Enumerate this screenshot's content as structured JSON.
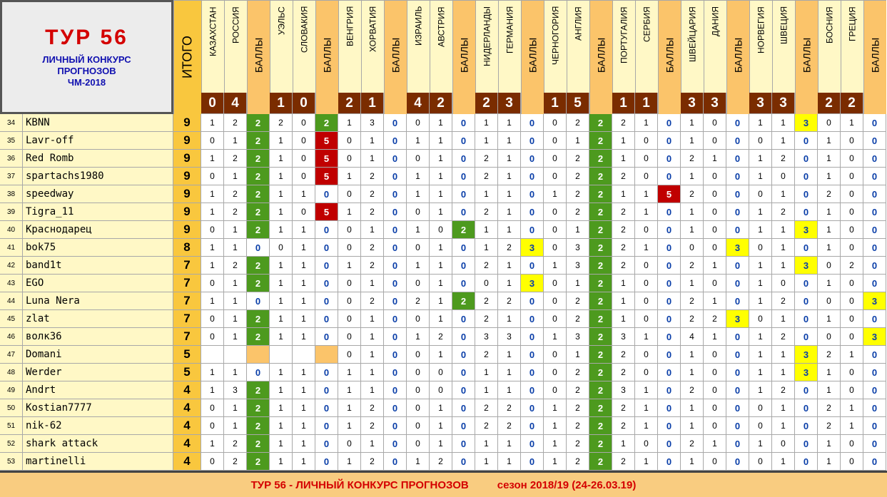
{
  "title": {
    "tour": "ТУР  56",
    "line1": "ЛИЧНЫЙ  КОНКУРС",
    "line2": "ПРОГНОЗОВ",
    "line3": "ЧМ-2018"
  },
  "itogo_label": "ИТОГО",
  "points_label": "БАЛЛЫ",
  "matches": [
    {
      "home": "КАЗАХСТАН",
      "away": "РОССИЯ",
      "score": [
        "0",
        "4"
      ]
    },
    {
      "home": "УЭЛЬС",
      "away": "СЛОВАКИЯ",
      "score": [
        "1",
        "0"
      ]
    },
    {
      "home": "ВЕНГРИЯ",
      "away": "ХОРВАТИЯ",
      "score": [
        "2",
        "1"
      ]
    },
    {
      "home": "ИЗРАИЛЬ",
      "away": "АВСТРИЯ",
      "score": [
        "4",
        "2"
      ]
    },
    {
      "home": "НИДЕРЛАНДЫ",
      "away": "ГЕРМАНИЯ",
      "score": [
        "2",
        "3"
      ]
    },
    {
      "home": "ЧЕРНОГОРИЯ",
      "away": "АНГЛИЯ",
      "score": [
        "1",
        "5"
      ]
    },
    {
      "home": "ПОРТУГАЛИЯ",
      "away": "СЕРБИЯ",
      "score": [
        "1",
        "1"
      ]
    },
    {
      "home": "ШВЕЙЦАРИЯ",
      "away": "ДАНИЯ",
      "score": [
        "3",
        "3"
      ]
    },
    {
      "home": "НОРВЕГИЯ",
      "away": "ШВЕЦИЯ",
      "score": [
        "3",
        "3"
      ]
    },
    {
      "home": "БОСНИЯ",
      "away": "ГРЕЦИЯ",
      "score": [
        "2",
        "2"
      ]
    }
  ],
  "rows": [
    {
      "n": "34",
      "name": "KBNN",
      "total": "9",
      "m": [
        [
          "1",
          "2",
          "2"
        ],
        [
          "2",
          "0",
          "2"
        ],
        [
          "1",
          "3",
          "0"
        ],
        [
          "0",
          "1",
          "0"
        ],
        [
          "1",
          "1",
          "0"
        ],
        [
          "0",
          "2",
          "2"
        ],
        [
          "2",
          "1",
          "0"
        ],
        [
          "1",
          "0",
          "0"
        ],
        [
          "1",
          "1",
          "3"
        ],
        [
          "0",
          "1",
          "0"
        ]
      ]
    },
    {
      "n": "35",
      "name": "Lavr-off",
      "total": "9",
      "m": [
        [
          "0",
          "1",
          "2"
        ],
        [
          "1",
          "0",
          "5"
        ],
        [
          "0",
          "1",
          "0"
        ],
        [
          "1",
          "1",
          "0"
        ],
        [
          "1",
          "1",
          "0"
        ],
        [
          "0",
          "1",
          "2"
        ],
        [
          "1",
          "0",
          "0"
        ],
        [
          "1",
          "0",
          "0"
        ],
        [
          "0",
          "1",
          "0"
        ],
        [
          "1",
          "0",
          "0"
        ]
      ]
    },
    {
      "n": "36",
      "name": "Red Romb",
      "total": "9",
      "m": [
        [
          "1",
          "2",
          "2"
        ],
        [
          "1",
          "0",
          "5"
        ],
        [
          "0",
          "1",
          "0"
        ],
        [
          "0",
          "1",
          "0"
        ],
        [
          "2",
          "1",
          "0"
        ],
        [
          "0",
          "2",
          "2"
        ],
        [
          "1",
          "0",
          "0"
        ],
        [
          "2",
          "1",
          "0"
        ],
        [
          "1",
          "2",
          "0"
        ],
        [
          "1",
          "0",
          "0"
        ]
      ]
    },
    {
      "n": "37",
      "name": "spartachs1980",
      "total": "9",
      "m": [
        [
          "0",
          "1",
          "2"
        ],
        [
          "1",
          "0",
          "5"
        ],
        [
          "1",
          "2",
          "0"
        ],
        [
          "1",
          "1",
          "0"
        ],
        [
          "2",
          "1",
          "0"
        ],
        [
          "0",
          "2",
          "2"
        ],
        [
          "2",
          "0",
          "0"
        ],
        [
          "1",
          "0",
          "0"
        ],
        [
          "1",
          "0",
          "0"
        ],
        [
          "1",
          "0",
          "0"
        ]
      ]
    },
    {
      "n": "38",
      "name": "speedway",
      "total": "9",
      "m": [
        [
          "1",
          "2",
          "2"
        ],
        [
          "1",
          "1",
          "0"
        ],
        [
          "0",
          "2",
          "0"
        ],
        [
          "1",
          "1",
          "0"
        ],
        [
          "1",
          "1",
          "0"
        ],
        [
          "1",
          "2",
          "2"
        ],
        [
          "1",
          "1",
          "5"
        ],
        [
          "2",
          "0",
          "0"
        ],
        [
          "0",
          "1",
          "0"
        ],
        [
          "2",
          "0",
          "0"
        ]
      ]
    },
    {
      "n": "39",
      "name": "Tigra_11",
      "total": "9",
      "m": [
        [
          "1",
          "2",
          "2"
        ],
        [
          "1",
          "0",
          "5"
        ],
        [
          "1",
          "2",
          "0"
        ],
        [
          "0",
          "1",
          "0"
        ],
        [
          "2",
          "1",
          "0"
        ],
        [
          "0",
          "2",
          "2"
        ],
        [
          "2",
          "1",
          "0"
        ],
        [
          "1",
          "0",
          "0"
        ],
        [
          "1",
          "2",
          "0"
        ],
        [
          "1",
          "0",
          "0"
        ]
      ]
    },
    {
      "n": "40",
      "name": "Краснодарец",
      "total": "9",
      "m": [
        [
          "0",
          "1",
          "2"
        ],
        [
          "1",
          "1",
          "0"
        ],
        [
          "0",
          "1",
          "0"
        ],
        [
          "1",
          "0",
          "2"
        ],
        [
          "1",
          "1",
          "0"
        ],
        [
          "0",
          "1",
          "2"
        ],
        [
          "2",
          "0",
          "0"
        ],
        [
          "1",
          "0",
          "0"
        ],
        [
          "1",
          "1",
          "3"
        ],
        [
          "1",
          "0",
          "0"
        ]
      ]
    },
    {
      "n": "41",
      "name": "bok75",
      "total": "8",
      "m": [
        [
          "1",
          "1",
          "0"
        ],
        [
          "0",
          "1",
          "0"
        ],
        [
          "0",
          "2",
          "0"
        ],
        [
          "0",
          "1",
          "0"
        ],
        [
          "1",
          "2",
          "3"
        ],
        [
          "0",
          "3",
          "2"
        ],
        [
          "2",
          "1",
          "0"
        ],
        [
          "0",
          "0",
          "3"
        ],
        [
          "0",
          "1",
          "0"
        ],
        [
          "1",
          "0",
          "0"
        ]
      ]
    },
    {
      "n": "42",
      "name": "band1t",
      "total": "7",
      "m": [
        [
          "1",
          "2",
          "2"
        ],
        [
          "1",
          "1",
          "0"
        ],
        [
          "1",
          "2",
          "0"
        ],
        [
          "1",
          "1",
          "0"
        ],
        [
          "2",
          "1",
          "0"
        ],
        [
          "1",
          "3",
          "2"
        ],
        [
          "2",
          "0",
          "0"
        ],
        [
          "2",
          "1",
          "0"
        ],
        [
          "1",
          "1",
          "3"
        ],
        [
          "0",
          "2",
          "0"
        ]
      ]
    },
    {
      "n": "43",
      "name": "EGO",
      "total": "7",
      "m": [
        [
          "0",
          "1",
          "2"
        ],
        [
          "1",
          "1",
          "0"
        ],
        [
          "0",
          "1",
          "0"
        ],
        [
          "0",
          "1",
          "0"
        ],
        [
          "0",
          "1",
          "3"
        ],
        [
          "0",
          "1",
          "2"
        ],
        [
          "1",
          "0",
          "0"
        ],
        [
          "1",
          "0",
          "0"
        ],
        [
          "1",
          "0",
          "0"
        ],
        [
          "1",
          "0",
          "0"
        ]
      ]
    },
    {
      "n": "44",
      "name": "Luna Nera",
      "total": "7",
      "m": [
        [
          "1",
          "1",
          "0"
        ],
        [
          "1",
          "1",
          "0"
        ],
        [
          "0",
          "2",
          "0"
        ],
        [
          "2",
          "1",
          "2"
        ],
        [
          "2",
          "2",
          "0"
        ],
        [
          "0",
          "2",
          "2"
        ],
        [
          "1",
          "0",
          "0"
        ],
        [
          "2",
          "1",
          "0"
        ],
        [
          "1",
          "2",
          "0"
        ],
        [
          "0",
          "0",
          "3"
        ]
      ]
    },
    {
      "n": "45",
      "name": "zlat",
      "total": "7",
      "m": [
        [
          "0",
          "1",
          "2"
        ],
        [
          "1",
          "1",
          "0"
        ],
        [
          "0",
          "1",
          "0"
        ],
        [
          "0",
          "1",
          "0"
        ],
        [
          "2",
          "1",
          "0"
        ],
        [
          "0",
          "2",
          "2"
        ],
        [
          "1",
          "0",
          "0"
        ],
        [
          "2",
          "2",
          "3"
        ],
        [
          "0",
          "1",
          "0"
        ],
        [
          "1",
          "0",
          "0"
        ]
      ]
    },
    {
      "n": "46",
      "name": "волк36",
      "total": "7",
      "m": [
        [
          "0",
          "1",
          "2"
        ],
        [
          "1",
          "1",
          "0"
        ],
        [
          "0",
          "1",
          "0"
        ],
        [
          "1",
          "2",
          "0"
        ],
        [
          "3",
          "3",
          "0"
        ],
        [
          "1",
          "3",
          "2"
        ],
        [
          "3",
          "1",
          "0"
        ],
        [
          "4",
          "1",
          "0"
        ],
        [
          "1",
          "2",
          "0"
        ],
        [
          "0",
          "0",
          "3"
        ]
      ]
    },
    {
      "n": "47",
      "name": "Domani",
      "total": "5",
      "m": [
        [
          "",
          "",
          ""
        ],
        [
          "",
          "",
          ""
        ],
        [
          "0",
          "1",
          "0"
        ],
        [
          "0",
          "1",
          "0"
        ],
        [
          "2",
          "1",
          "0"
        ],
        [
          "0",
          "1",
          "2"
        ],
        [
          "2",
          "0",
          "0"
        ],
        [
          "1",
          "0",
          "0"
        ],
        [
          "1",
          "1",
          "3"
        ],
        [
          "2",
          "1",
          "0"
        ]
      ]
    },
    {
      "n": "48",
      "name": "Werder",
      "total": "5",
      "m": [
        [
          "1",
          "1",
          "0"
        ],
        [
          "1",
          "1",
          "0"
        ],
        [
          "1",
          "1",
          "0"
        ],
        [
          "0",
          "0",
          "0"
        ],
        [
          "1",
          "1",
          "0"
        ],
        [
          "0",
          "2",
          "2"
        ],
        [
          "2",
          "0",
          "0"
        ],
        [
          "1",
          "0",
          "0"
        ],
        [
          "1",
          "1",
          "3"
        ],
        [
          "1",
          "0",
          "0"
        ]
      ]
    },
    {
      "n": "49",
      "name": "Andrt",
      "total": "4",
      "m": [
        [
          "1",
          "3",
          "2"
        ],
        [
          "1",
          "1",
          "0"
        ],
        [
          "1",
          "1",
          "0"
        ],
        [
          "0",
          "0",
          "0"
        ],
        [
          "1",
          "1",
          "0"
        ],
        [
          "0",
          "2",
          "2"
        ],
        [
          "3",
          "1",
          "0"
        ],
        [
          "2",
          "0",
          "0"
        ],
        [
          "1",
          "2",
          "0"
        ],
        [
          "1",
          "0",
          "0"
        ]
      ]
    },
    {
      "n": "50",
      "name": "Kostian7777",
      "total": "4",
      "m": [
        [
          "0",
          "1",
          "2"
        ],
        [
          "1",
          "1",
          "0"
        ],
        [
          "1",
          "2",
          "0"
        ],
        [
          "0",
          "1",
          "0"
        ],
        [
          "2",
          "2",
          "0"
        ],
        [
          "1",
          "2",
          "2"
        ],
        [
          "2",
          "1",
          "0"
        ],
        [
          "1",
          "0",
          "0"
        ],
        [
          "0",
          "1",
          "0"
        ],
        [
          "2",
          "1",
          "0"
        ]
      ]
    },
    {
      "n": "51",
      "name": "nik-62",
      "total": "4",
      "m": [
        [
          "0",
          "1",
          "2"
        ],
        [
          "1",
          "1",
          "0"
        ],
        [
          "1",
          "2",
          "0"
        ],
        [
          "0",
          "1",
          "0"
        ],
        [
          "2",
          "2",
          "0"
        ],
        [
          "1",
          "2",
          "2"
        ],
        [
          "2",
          "1",
          "0"
        ],
        [
          "1",
          "0",
          "0"
        ],
        [
          "0",
          "1",
          "0"
        ],
        [
          "2",
          "1",
          "0"
        ]
      ]
    },
    {
      "n": "52",
      "name": "shark attack",
      "total": "4",
      "m": [
        [
          "1",
          "2",
          "2"
        ],
        [
          "1",
          "1",
          "0"
        ],
        [
          "0",
          "1",
          "0"
        ],
        [
          "0",
          "1",
          "0"
        ],
        [
          "1",
          "1",
          "0"
        ],
        [
          "1",
          "2",
          "2"
        ],
        [
          "1",
          "0",
          "0"
        ],
        [
          "2",
          "1",
          "0"
        ],
        [
          "1",
          "0",
          "0"
        ],
        [
          "1",
          "0",
          "0"
        ]
      ]
    },
    {
      "n": "53",
      "name": "martinelli",
      "total": "4",
      "m": [
        [
          "0",
          "2",
          "2"
        ],
        [
          "1",
          "1",
          "0"
        ],
        [
          "1",
          "2",
          "0"
        ],
        [
          "1",
          "2",
          "0"
        ],
        [
          "1",
          "1",
          "0"
        ],
        [
          "1",
          "2",
          "2"
        ],
        [
          "2",
          "1",
          "0"
        ],
        [
          "1",
          "0",
          "0"
        ],
        [
          "0",
          "1",
          "0"
        ],
        [
          "1",
          "0",
          "0"
        ]
      ]
    }
  ],
  "footer": {
    "left": "ТУР 56 - ЛИЧНЫЙ КОНКУРС ПРОГНОЗОВ",
    "right": "сезон 2018/19  (24-26.03.19)"
  },
  "colors": {
    "header_yellow": "#fff8c6",
    "points_header": "#fbc46a",
    "score_bg": "#7a2c00",
    "total_bg": "#f9c73e",
    "green": "#4d9a1e",
    "red": "#c00000",
    "yellow": "#ffff00",
    "blue": "#0a3ea8",
    "footer_bg": "#f9cc80",
    "title_red": "#d40000",
    "title_blue": "#1010b0"
  }
}
